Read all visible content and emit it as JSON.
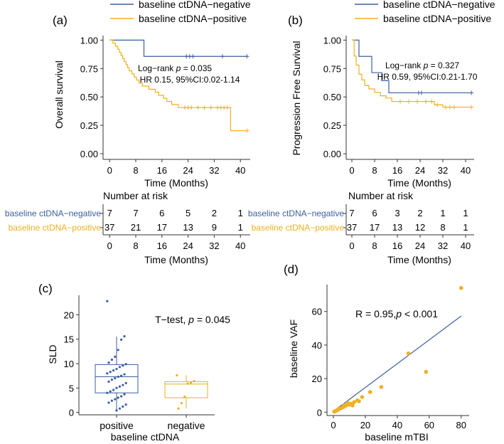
{
  "colors": {
    "negative": "#3a5fa0",
    "positive": "#f0b020",
    "axis": "#333333",
    "box_neg": "#e8b020"
  },
  "chart_data": [
    {
      "panel": "a",
      "type": "line",
      "panel_label": "(a)",
      "title": "",
      "xlabel": "Time (Months)",
      "ylabel": "Overall survival",
      "xlim": [
        -2,
        43
      ],
      "ylim": [
        -0.05,
        1.04
      ],
      "xticks": [
        0,
        8,
        16,
        24,
        32,
        40
      ],
      "yticks": [
        "0.00",
        "0.25",
        "0.50",
        "0.75",
        "1.00"
      ],
      "legend": [
        "baseline ctDNA−negative",
        "baseline  ctDNA−positive"
      ],
      "annotation_line1_prefix": "Log−rank ",
      "annotation_line1_p": "p",
      "annotation_line1_value": " = 0.035",
      "annotation_line2": "HR 0.15, 95%CI:0.02-1.14",
      "series": [
        {
          "name": "baseline ctDNA−negative",
          "color_key": "negative",
          "steps": [
            [
              0,
              1.0
            ],
            [
              10.5,
              0.857
            ],
            [
              42,
              0.857
            ]
          ],
          "censor": [
            [
              23.5,
              0.857
            ],
            [
              24.5,
              0.857
            ],
            [
              25.5,
              0.857
            ],
            [
              34.5,
              0.857
            ],
            [
              42,
              0.857
            ]
          ]
        },
        {
          "name": "baseline  ctDNA−positive",
          "color_key": "positive",
          "steps": [
            [
              0,
              1.0
            ],
            [
              1,
              0.973
            ],
            [
              1.8,
              0.946
            ],
            [
              2.5,
              0.919
            ],
            [
              3,
              0.892
            ],
            [
              3.5,
              0.865
            ],
            [
              4,
              0.838
            ],
            [
              4.5,
              0.811
            ],
            [
              5,
              0.784
            ],
            [
              5.5,
              0.757
            ],
            [
              6,
              0.73
            ],
            [
              6.8,
              0.703
            ],
            [
              7.5,
              0.676
            ],
            [
              8.2,
              0.649
            ],
            [
              9,
              0.622
            ],
            [
              10,
              0.595
            ],
            [
              12,
              0.568
            ],
            [
              14,
              0.541
            ],
            [
              15,
              0.514
            ],
            [
              16.5,
              0.487
            ],
            [
              17.5,
              0.46
            ],
            [
              19,
              0.433
            ],
            [
              21,
              0.406
            ],
            [
              37,
              0.203
            ],
            [
              42,
              0.203
            ]
          ],
          "censor": [
            [
              23,
              0.406
            ],
            [
              24,
              0.406
            ],
            [
              25,
              0.406
            ],
            [
              27,
              0.406
            ],
            [
              29,
              0.406
            ],
            [
              31,
              0.406
            ],
            [
              33,
              0.406
            ],
            [
              34,
              0.406
            ],
            [
              35,
              0.406
            ],
            [
              36,
              0.406
            ],
            [
              42,
              0.203
            ]
          ]
        }
      ],
      "risk_table": {
        "title": "Number at risk",
        "times": [
          0,
          8,
          16,
          24,
          32,
          40
        ],
        "xlabel": "Time (Months)",
        "rows": [
          {
            "label": "baseline ctDNA−negative",
            "color_key": "negative",
            "values": [
              "7",
              "7",
              "6",
              "5",
              "2",
              "1"
            ]
          },
          {
            "label": "baseline  ctDNA−positive",
            "color_key": "positive",
            "values": [
              "37",
              "21",
              "17",
              "13",
              "9",
              "1"
            ]
          }
        ]
      }
    },
    {
      "panel": "b",
      "type": "line",
      "panel_label": "(b)",
      "title": "",
      "xlabel": "Time (Months)",
      "ylabel": "Progression Free Survival",
      "xlim": [
        -2,
        43
      ],
      "ylim": [
        -0.05,
        1.04
      ],
      "xticks": [
        0,
        8,
        16,
        24,
        32,
        40
      ],
      "yticks": [
        "0.00",
        "0.25",
        "0.50",
        "0.75",
        "1.00"
      ],
      "legend": [
        "baseline ctDNA−negative",
        "baseline  ctDNA−positive"
      ],
      "annotation_line1_prefix": "Log−rank ",
      "annotation_line1_p": "p",
      "annotation_line1_value": " = 0.327",
      "annotation_line2": "HR 0.59, 95%CI:0.21-1.70",
      "series": [
        {
          "name": "baseline ctDNA−negative",
          "color_key": "negative",
          "steps": [
            [
              0,
              1.0
            ],
            [
              2.5,
              0.857
            ],
            [
              7,
              0.714
            ],
            [
              10.5,
              0.643
            ],
            [
              13,
              0.536
            ],
            [
              42,
              0.536
            ]
          ],
          "censor": [
            [
              23.5,
              0.536
            ],
            [
              24.5,
              0.536
            ],
            [
              42,
              0.536
            ]
          ]
        },
        {
          "name": "baseline  ctDNA−positive",
          "color_key": "positive",
          "steps": [
            [
              0,
              1.0
            ],
            [
              0.8,
              0.86
            ],
            [
              1.5,
              0.78
            ],
            [
              2.5,
              0.7
            ],
            [
              3.5,
              0.65
            ],
            [
              4.5,
              0.6
            ],
            [
              6,
              0.57
            ],
            [
              8,
              0.54
            ],
            [
              10,
              0.51
            ],
            [
              12,
              0.49
            ],
            [
              14,
              0.46
            ],
            [
              29,
              0.43
            ],
            [
              32,
              0.41
            ],
            [
              42,
              0.41
            ]
          ],
          "censor": [
            [
              17,
              0.46
            ],
            [
              20,
              0.46
            ],
            [
              23,
              0.46
            ],
            [
              26,
              0.46
            ],
            [
              28,
              0.46
            ],
            [
              30,
              0.43
            ],
            [
              33,
              0.41
            ],
            [
              34.5,
              0.41
            ],
            [
              36,
              0.41
            ],
            [
              42,
              0.41
            ]
          ]
        }
      ],
      "risk_table": {
        "title": "Number at risk",
        "times": [
          0,
          8,
          16,
          24,
          32,
          40
        ],
        "xlabel": "Time (Months)",
        "rows": [
          {
            "label": "baseline ctDNA−negative",
            "color_key": "negative",
            "values": [
              "7",
              "6",
              "3",
              "2",
              "1",
              "1"
            ]
          },
          {
            "label": "baseline  ctDNA−positive",
            "color_key": "positive",
            "values": [
              "37",
              "17",
              "13",
              "12",
              "8",
              "1"
            ]
          }
        ]
      }
    },
    {
      "panel": "c",
      "type": "box",
      "panel_label": "(c)",
      "title": "",
      "xlabel": "baseline ctDNA",
      "ylabel": "SLD",
      "ylim": [
        -0.5,
        24
      ],
      "yticks": [
        0,
        5,
        10,
        15,
        20
      ],
      "categories": [
        "positive",
        "negative"
      ],
      "annotation_prefix": "T−test, ",
      "annotation_p": "p",
      "annotation_value": " = 0.045",
      "groups": [
        {
          "name": "positive",
          "color_key": "negative",
          "q1": 4.0,
          "median": 7.3,
          "q3": 9.8,
          "whisker_low": 0.3,
          "whisker_high": 15.5,
          "points": [
            22.8,
            15.6,
            14.9,
            12.8,
            11.4,
            10.8,
            10.2,
            9.9,
            9.6,
            9.3,
            8.9,
            8.6,
            8.3,
            8.0,
            7.8,
            7.5,
            7.3,
            7.0,
            6.7,
            6.3,
            6.0,
            5.6,
            5.3,
            5.0,
            4.6,
            4.3,
            4.0,
            3.7,
            3.3,
            3.0,
            2.7,
            2.4,
            2.0,
            1.6,
            1.2,
            0.8,
            0.4
          ]
        },
        {
          "name": "negative",
          "color_key": "positive",
          "q1": 3.0,
          "median": 5.8,
          "q3": 6.3,
          "whisker_low": 0.8,
          "whisker_high": 7.6,
          "points": [
            7.6,
            6.4,
            6.1,
            5.9,
            3.2,
            1.9,
            0.8
          ]
        }
      ]
    },
    {
      "panel": "d",
      "type": "scatter",
      "panel_label": "(d)",
      "title": "",
      "xlabel": "baseline mTBI",
      "ylabel": "baseline VAF",
      "xlim": [
        -4,
        85
      ],
      "ylim": [
        -2,
        76
      ],
      "xticks": [
        0,
        20,
        40,
        60,
        80
      ],
      "yticks": [
        0,
        20,
        40,
        60
      ],
      "annotation_prefix": "R = 0.95,",
      "annotation_p": "p",
      "annotation_value": " < 0.001",
      "regression": {
        "slope": 0.71,
        "intercept": 0.5
      },
      "points": [
        [
          80,
          74
        ],
        [
          47,
          35
        ],
        [
          58,
          24
        ],
        [
          30,
          15
        ],
        [
          23,
          12
        ],
        [
          18,
          9
        ],
        [
          15,
          7
        ],
        [
          13,
          6
        ],
        [
          11,
          5
        ],
        [
          10,
          4.5
        ],
        [
          8,
          4
        ],
        [
          7,
          3.5
        ],
        [
          6,
          3
        ],
        [
          5,
          2.5
        ],
        [
          4,
          2
        ],
        [
          3,
          1.6
        ],
        [
          2.5,
          1.2
        ],
        [
          2,
          1
        ],
        [
          1.5,
          0.8
        ],
        [
          1,
          0.5
        ],
        [
          0.5,
          0.3
        ],
        [
          3.5,
          2.2
        ],
        [
          9,
          5.5
        ],
        [
          12,
          4
        ],
        [
          6.5,
          4
        ],
        [
          16,
          6.5
        ]
      ]
    }
  ]
}
